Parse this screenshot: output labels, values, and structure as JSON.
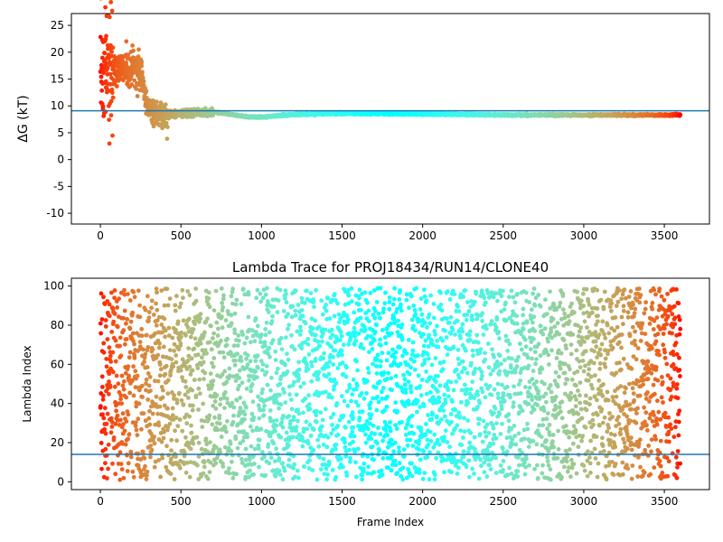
{
  "chart_data": [
    {
      "type": "scatter",
      "title": "",
      "xlabel": "",
      "ylabel": "ΔG (kT)",
      "xlim": [
        -180,
        3780
      ],
      "ylim": [
        -12,
        27.2
      ],
      "xticks": [
        "0",
        "500",
        "1000",
        "1500",
        "2000",
        "2500",
        "3000",
        "3500"
      ],
      "yticks": [
        "-10",
        "-5",
        "0",
        "5",
        "10",
        "15",
        "20",
        "25"
      ],
      "colormap": "rainbow",
      "reference_line": {
        "value": 9.1,
        "color": "#1f77b4"
      },
      "grid": false,
      "n_points": 3600,
      "trend": [
        {
          "frame": 0,
          "value": 19
        },
        {
          "frame": 40,
          "value": 16.5
        },
        {
          "frame": 120,
          "value": 16.5
        },
        {
          "frame": 250,
          "value": 17
        },
        {
          "frame": 270,
          "value": 13
        },
        {
          "frame": 300,
          "value": 9
        },
        {
          "frame": 400,
          "value": 8.3
        },
        {
          "frame": 500,
          "value": 8.7
        },
        {
          "frame": 700,
          "value": 8.9
        },
        {
          "frame": 900,
          "value": 8.0
        },
        {
          "frame": 1000,
          "value": 7.9
        },
        {
          "frame": 1200,
          "value": 8.4
        },
        {
          "frame": 1500,
          "value": 8.6
        },
        {
          "frame": 2000,
          "value": 8.5
        },
        {
          "frame": 2500,
          "value": 8.3
        },
        {
          "frame": 3600,
          "value": 8.3
        }
      ]
    },
    {
      "type": "scatter",
      "title": "Lambda Trace for PROJ18434/RUN14/CLONE40",
      "xlabel": "Frame Index",
      "ylabel": "Lambda Index",
      "xlim": [
        -180,
        3780
      ],
      "ylim": [
        -4,
        104
      ],
      "xticks": [
        "0",
        "500",
        "1000",
        "1500",
        "2000",
        "2500",
        "3000",
        "3500"
      ],
      "yticks": [
        "0",
        "20",
        "40",
        "60",
        "80",
        "100"
      ],
      "colormap": "rainbow",
      "reference_line": {
        "value": 14,
        "color": "#1f77b4"
      },
      "grid": false,
      "n_points": 3600,
      "value_range": [
        1,
        99
      ]
    }
  ]
}
